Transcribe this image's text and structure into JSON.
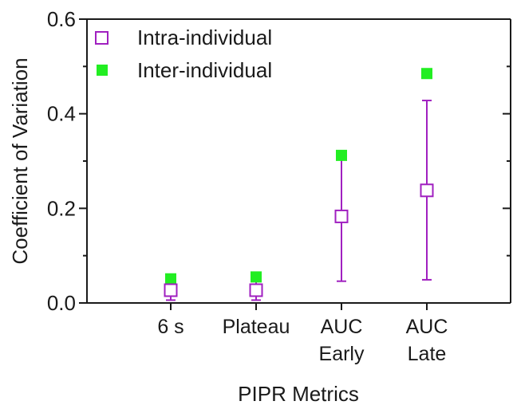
{
  "chart_data": {
    "type": "scatter",
    "title": "",
    "xlabel": "PIPR Metrics",
    "ylabel": "Coefficient of Variation",
    "categories": [
      [
        "6 s"
      ],
      [
        "Plateau"
      ],
      [
        "AUC",
        "Early"
      ],
      [
        "AUC",
        "Late"
      ]
    ],
    "ylim": [
      0,
      0.6
    ],
    "yticks": [
      0.0,
      0.2,
      0.4,
      0.6
    ],
    "ytick_labels": [
      "0.0",
      "0.2",
      "0.4",
      "0.6"
    ],
    "grid": false,
    "legend_position": "top-left",
    "series": [
      {
        "name": "Intra-individual",
        "marker": "open-square",
        "color": "#a020c0",
        "values": [
          0.027,
          0.027,
          0.183,
          0.238
        ],
        "error_low": [
          0.006,
          0.006,
          0.046,
          0.049
        ],
        "error_high": [
          0.045,
          0.047,
          0.318,
          0.428
        ]
      },
      {
        "name": "Inter-individual",
        "marker": "filled-square",
        "color": "#22ee22",
        "values": [
          0.051,
          0.055,
          0.312,
          0.485
        ]
      }
    ]
  }
}
